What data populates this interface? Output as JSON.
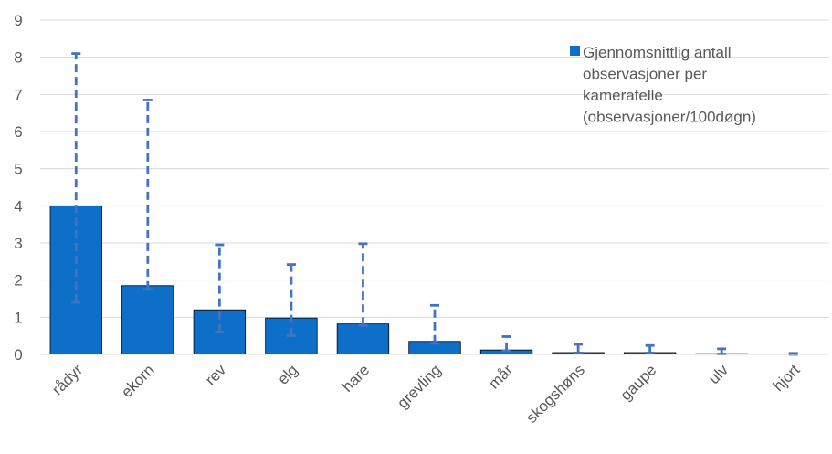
{
  "chart_data": {
    "type": "bar",
    "title": "",
    "xlabel": "",
    "ylabel": "",
    "categories": [
      "rådyr",
      "ekorn",
      "rev",
      "elg",
      "hare",
      "grevling",
      "mår",
      "skogshøns",
      "gaupe",
      "ulv",
      "hjort"
    ],
    "series": [
      {
        "name": "Gjennomsnittlig antall observasjoner per kamerafelle (observasjoner/100døgn)",
        "values": [
          4.0,
          1.85,
          1.2,
          0.98,
          0.82,
          0.35,
          0.12,
          0.05,
          0.05,
          0.02,
          0.0
        ],
        "error_low": [
          1.4,
          1.75,
          0.6,
          0.5,
          0.78,
          0.3,
          0.1,
          0.04,
          0.04,
          0.01,
          0.0
        ],
        "error_high": [
          8.1,
          6.85,
          2.95,
          2.42,
          2.98,
          1.32,
          0.48,
          0.27,
          0.24,
          0.15,
          0.03
        ],
        "color": "#0E6FC9",
        "error_color": "#4472C4"
      }
    ],
    "ylim": [
      0,
      9
    ],
    "yticks": [
      "0",
      "1",
      "2",
      "3",
      "4",
      "5",
      "6",
      "7",
      "8",
      "9"
    ],
    "grid": true,
    "legend_lines": [
      "Gjennomsnittlig antall",
      "observasjoner per",
      "kamerafelle",
      "(observasjoner/100døgn)"
    ],
    "legend_position": "top-right"
  }
}
